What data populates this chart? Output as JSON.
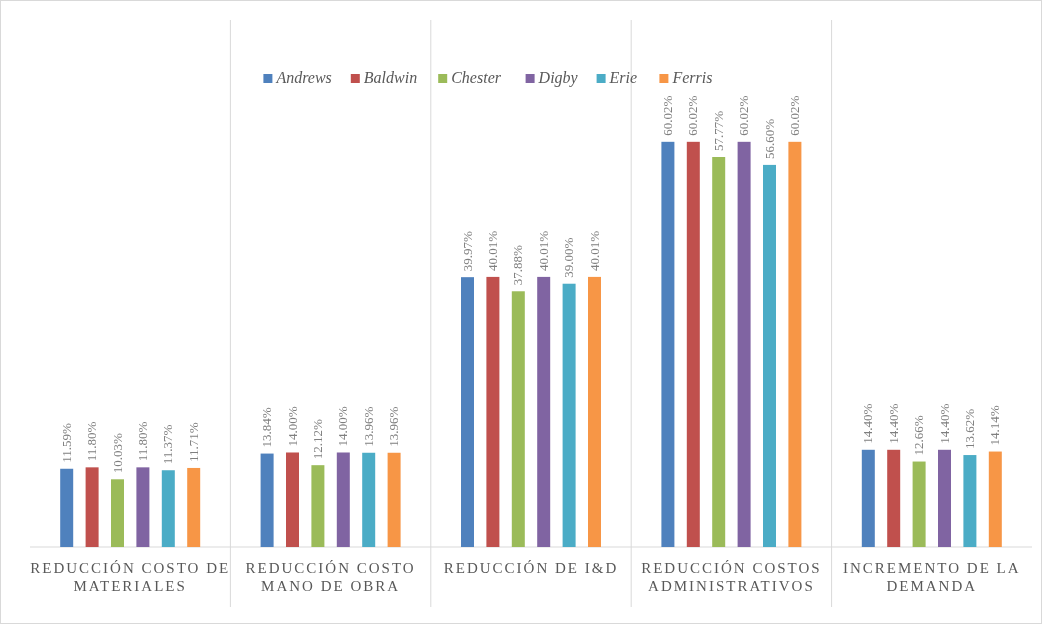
{
  "chart_data": {
    "type": "bar",
    "categories": [
      "REDUCCIÓN COSTO DE MATERIALES",
      "REDUCCIÓN COSTO MANO DE OBRA",
      "REDUCCIÓN DE I&D",
      "REDUCCIÓN COSTOS ADMINISTRATIVOS",
      "INCREMENTO DE LA DEMANDA"
    ],
    "legend": "top",
    "series": [
      {
        "name": "Andrews",
        "color": "#4f81bd",
        "values": [
          11.59,
          13.84,
          39.97,
          60.02,
          14.4
        ],
        "value_labels": [
          "11.59%",
          "13.84%",
          "39.97%",
          "60.02%",
          "14.40%"
        ]
      },
      {
        "name": "Baldwin",
        "color": "#c0504d",
        "values": [
          11.8,
          14.0,
          40.01,
          60.02,
          14.4
        ],
        "value_labels": [
          "11.80%",
          "14.00%",
          "40.01%",
          "60.02%",
          "14.40%"
        ]
      },
      {
        "name": "Chester",
        "color": "#9bbb59",
        "values": [
          10.03,
          12.12,
          37.88,
          57.77,
          12.66
        ],
        "value_labels": [
          "10.03%",
          "12.12%",
          "37.88%",
          "57.77%",
          "12.66%"
        ]
      },
      {
        "name": "Digby",
        "color": "#8064a2",
        "values": [
          11.8,
          14.0,
          40.01,
          60.02,
          14.4
        ],
        "value_labels": [
          "11.80%",
          "14.00%",
          "40.01%",
          "60.02%",
          "14.40%"
        ]
      },
      {
        "name": "Erie",
        "color": "#4bacc6",
        "values": [
          11.37,
          13.96,
          39.0,
          56.6,
          13.62
        ],
        "value_labels": [
          "11.37%",
          "13.96%",
          "39.00%",
          "56.60%",
          "13.62%"
        ]
      },
      {
        "name": "Ferris",
        "color": "#f79646",
        "values": [
          11.71,
          13.96,
          40.01,
          60.02,
          14.14
        ],
        "value_labels": [
          "11.71%",
          "13.96%",
          "40.01%",
          "60.02%",
          "14.14%"
        ]
      }
    ]
  }
}
